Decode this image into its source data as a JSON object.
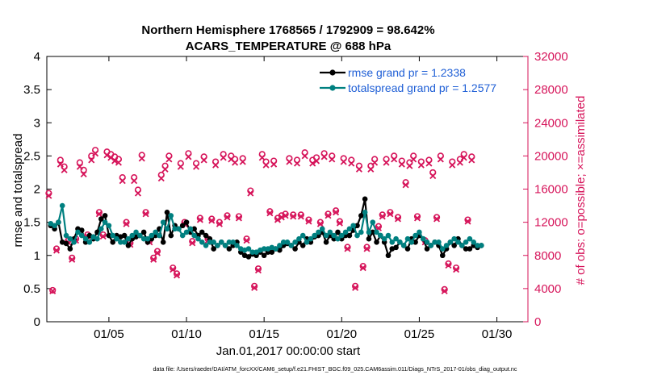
{
  "colors": {
    "rmse": "#000000",
    "spread": "#008080",
    "obs": "#D6145A",
    "legend_text": "#1F5FD6",
    "axis": "#000000"
  },
  "chart_data": {
    "type": "line",
    "title": "Northern Hemisphere 1768565 / 1792909 = 98.642%",
    "subtitle": "ACARS_TEMPERATURE @ 688 hPa",
    "xlabel": "Jan.01,2017 00:00:00 start",
    "ylabel_left": "rmse and totalspread",
    "ylabel_right": "# of obs: o=possible; ×=assimilated",
    "footnote": "data file: /Users/raeder/DAI/ATM_forcXX/CAM6_setup/f.e21.FHIST_BGC.f09_025.CAM6assim.011/Diags_NTrS_2017-01/obs_diag_output.nc",
    "xlim": [
      1,
      32
    ],
    "ylim_left": [
      0,
      4
    ],
    "ylim_right": [
      0,
      32000
    ],
    "x_ticks": [
      5,
      10,
      15,
      20,
      25,
      30
    ],
    "x_tick_labels": [
      "01/05",
      "01/10",
      "01/15",
      "01/20",
      "01/25",
      "01/30"
    ],
    "y_left_ticks": [
      "0",
      "0.5",
      "1",
      "1.5",
      "2",
      "2.5",
      "3",
      "3.5",
      "4"
    ],
    "y_right_ticks": [
      "0",
      "4000",
      "8000",
      "12000",
      "16000",
      "20000",
      "24000",
      "28000",
      "32000"
    ],
    "legend": [
      {
        "name": "rmse grand pr = 1.2338",
        "color": "#000000"
      },
      {
        "name": "totalspread grand pr = 1.2577",
        "color": "#008080"
      }
    ],
    "legend_position": "top-right",
    "series": [
      {
        "name": "rmse",
        "axis": "left",
        "x_start": 1.25,
        "x_step": 0.25,
        "values": [
          1.45,
          1.4,
          1.5,
          1.2,
          1.18,
          1.1,
          1.25,
          1.4,
          1.38,
          1.2,
          1.3,
          1.25,
          1.35,
          1.55,
          1.6,
          1.3,
          1.2,
          1.3,
          1.28,
          1.3,
          1.15,
          1.25,
          1.28,
          1.3,
          1.35,
          1.2,
          1.25,
          1.3,
          1.4,
          1.2,
          1.65,
          1.3,
          1.45,
          1.4,
          1.45,
          1.5,
          1.35,
          1.4,
          1.3,
          1.35,
          1.3,
          1.25,
          1.1,
          1.15,
          1.2,
          1.15,
          1.1,
          1.15,
          1.2,
          1.05,
          1.0,
          0.98,
          1.02,
          1.0,
          1.05,
          1.0,
          1.05,
          1.05,
          1.1,
          1.08,
          1.15,
          1.18,
          1.15,
          1.1,
          1.2,
          1.15,
          1.25,
          1.2,
          1.28,
          1.3,
          1.35,
          1.2,
          1.3,
          1.25,
          1.35,
          1.25,
          1.3,
          1.3,
          1.38,
          1.45,
          1.6,
          1.85,
          1.25,
          1.35,
          1.2,
          1.3,
          1.2,
          1.0,
          1.1,
          1.12,
          1.2,
          1.15,
          1.1,
          1.25,
          1.2,
          1.3,
          1.25,
          1.1,
          1.15,
          1.2,
          1.15,
          1.0,
          1.1,
          1.2,
          1.15,
          1.25,
          1.15,
          1.1,
          1.1,
          1.15,
          1.12,
          1.15
        ]
      },
      {
        "name": "totalspread",
        "axis": "left",
        "x_start": 1.25,
        "x_step": 0.25,
        "values": [
          1.48,
          1.45,
          1.5,
          1.75,
          1.3,
          1.25,
          1.2,
          1.35,
          1.3,
          1.25,
          1.2,
          1.28,
          1.25,
          1.4,
          1.5,
          1.45,
          1.3,
          1.25,
          1.2,
          1.2,
          1.25,
          1.3,
          1.35,
          1.3,
          1.25,
          1.25,
          1.3,
          1.35,
          1.3,
          1.5,
          1.4,
          1.6,
          1.4,
          1.4,
          1.3,
          1.35,
          1.4,
          1.3,
          1.25,
          1.2,
          1.15,
          1.2,
          1.2,
          1.15,
          1.2,
          1.15,
          1.2,
          1.2,
          1.15,
          1.1,
          1.08,
          1.1,
          1.05,
          1.05,
          1.08,
          1.1,
          1.1,
          1.12,
          1.1,
          1.15,
          1.2,
          1.2,
          1.15,
          1.2,
          1.25,
          1.3,
          1.2,
          1.25,
          1.3,
          1.35,
          1.4,
          1.3,
          1.35,
          1.3,
          1.25,
          1.3,
          1.35,
          1.4,
          1.45,
          1.3,
          1.35,
          1.65,
          1.35,
          1.5,
          1.35,
          1.3,
          1.25,
          1.3,
          1.2,
          1.25,
          1.2,
          1.15,
          1.25,
          1.2,
          1.3,
          1.35,
          1.25,
          1.2,
          1.15,
          1.2,
          1.2,
          1.1,
          1.15,
          1.2,
          1.25,
          1.2,
          1.15,
          1.2,
          1.25,
          1.2,
          1.15,
          1.15
        ]
      },
      {
        "name": "obs possible",
        "axis": "right",
        "x_start": 1.125,
        "x_step": 0.25,
        "values": [
          15500,
          3800,
          8800,
          19500,
          18700,
          9800,
          7700,
          10000,
          19200,
          18300,
          10500,
          20000,
          20700,
          13200,
          10500,
          20500,
          20200,
          19900,
          19600,
          17400,
          12000,
          9500,
          17400,
          15900,
          20100,
          13200,
          9800,
          7700,
          8500,
          17700,
          18800,
          20000,
          6500,
          5800,
          19100,
          12000,
          20300,
          9700,
          19100,
          12500,
          19900,
          10000,
          12400,
          19300,
          12000,
          20200,
          12800,
          20000,
          19600,
          12700,
          19700,
          10000,
          15800,
          4300,
          6400,
          20200,
          19300,
          13300,
          19400,
          12500,
          12800,
          13000,
          19700,
          12900,
          19500,
          12900,
          20400,
          12300,
          19500,
          19800,
          12000,
          20300,
          13000,
          20000,
          13400,
          12100,
          19700,
          9000,
          19500,
          4300,
          18800,
          6700,
          9000,
          18800,
          19600,
          11500,
          12900,
          19600,
          13200,
          20000,
          12600,
          19400,
          16800,
          19200,
          20000,
          12700,
          19300,
          9800,
          19500,
          18000,
          12600,
          20000,
          3900,
          7000,
          19300,
          6500,
          19600,
          20200,
          12300,
          19900
        ]
      },
      {
        "name": "obs assimilated",
        "axis": "right",
        "x_start": 1.125,
        "x_step": 0.25,
        "values": [
          15200,
          3700,
          8600,
          19000,
          18300,
          9600,
          7500,
          9800,
          18700,
          17800,
          10300,
          19500,
          20300,
          13000,
          10300,
          20100,
          19800,
          19400,
          19200,
          17000,
          11800,
          9300,
          17000,
          15500,
          19700,
          13000,
          9600,
          7500,
          8300,
          17300,
          18400,
          19600,
          6300,
          5600,
          18700,
          11800,
          19900,
          9500,
          18700,
          12300,
          19500,
          9800,
          12200,
          18900,
          11800,
          19800,
          12600,
          19600,
          19200,
          12500,
          19300,
          9800,
          15500,
          4100,
          6200,
          19800,
          18900,
          13100,
          19000,
          12300,
          12600,
          12800,
          19300,
          12700,
          19100,
          12700,
          20000,
          12100,
          19100,
          19400,
          11800,
          19900,
          12800,
          19600,
          13200,
          11900,
          19300,
          8800,
          19100,
          4100,
          18400,
          6500,
          8800,
          18400,
          19200,
          11300,
          12700,
          19200,
          13000,
          19600,
          12400,
          19000,
          16500,
          18800,
          19600,
          12500,
          18900,
          9600,
          19100,
          17600,
          12400,
          19600,
          3700,
          6800,
          18900,
          6300,
          19200,
          19800,
          12100,
          19500
        ]
      }
    ]
  }
}
